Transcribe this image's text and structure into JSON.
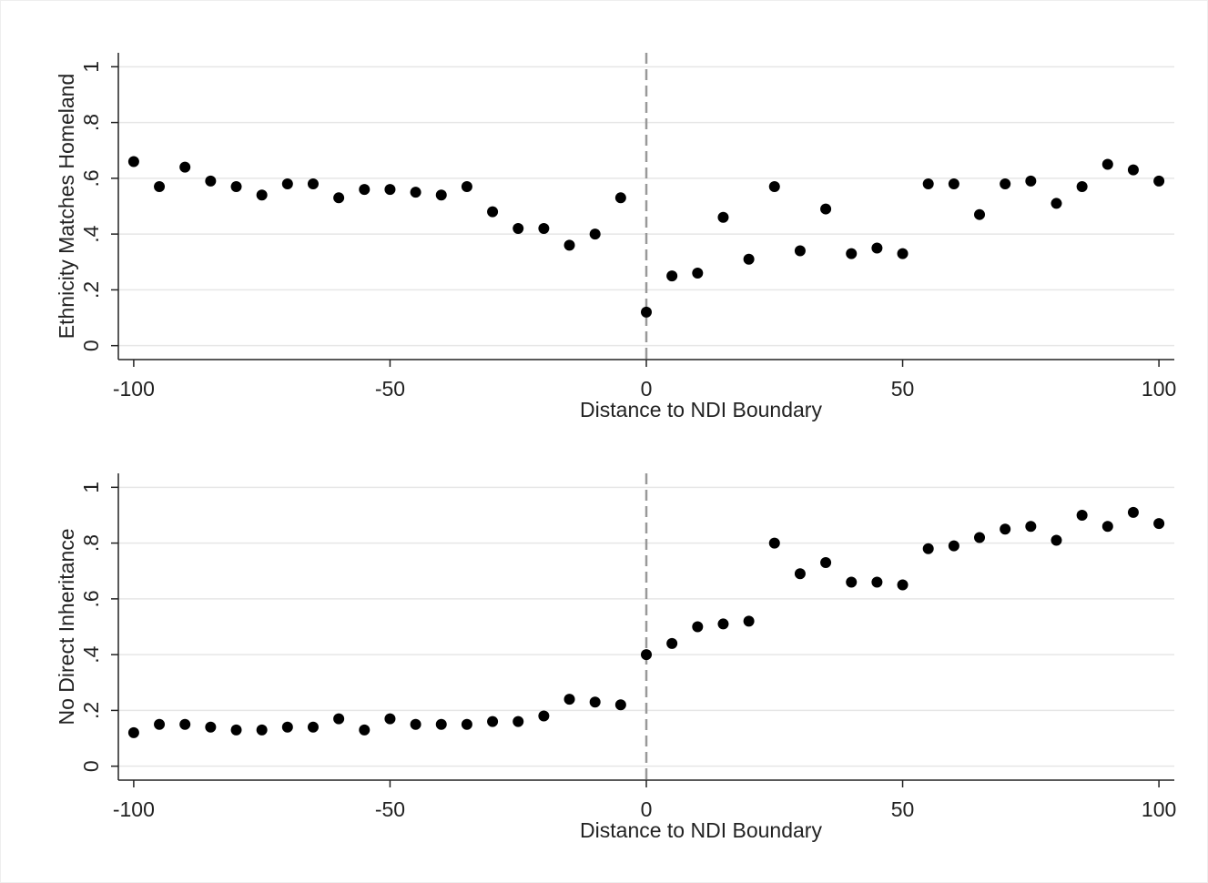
{
  "chart_data": [
    {
      "type": "scatter",
      "y_label": "Ethnicity Matches Homeland",
      "x_label": "Distance to NDI Boundary",
      "x": [
        -100,
        -95,
        -90,
        -85,
        -80,
        -75,
        -70,
        -65,
        -60,
        -55,
        -50,
        -45,
        -40,
        -35,
        -30,
        -25,
        -20,
        -15,
        -10,
        -5,
        0,
        5,
        10,
        15,
        20,
        25,
        30,
        35,
        40,
        45,
        50,
        55,
        60,
        65,
        70,
        75,
        80,
        85,
        90,
        95,
        100
      ],
      "values": [
        0.66,
        0.57,
        0.64,
        0.59,
        0.57,
        0.54,
        0.58,
        0.58,
        0.53,
        0.56,
        0.56,
        0.55,
        0.54,
        0.57,
        0.48,
        0.42,
        0.42,
        0.36,
        0.4,
        0.53,
        0.12,
        0.25,
        0.26,
        0.46,
        0.31,
        0.57,
        0.34,
        0.49,
        0.33,
        0.35,
        0.33,
        0.58,
        0.58,
        0.47,
        0.58,
        0.59,
        0.51,
        0.57,
        0.65,
        0.63,
        0.59
      ],
      "color": "#000000",
      "xlim": [
        -103,
        103
      ],
      "ylim": [
        -0.05,
        1.05
      ],
      "xticks": [
        -100,
        -50,
        0,
        50,
        100
      ],
      "yticks": [
        0,
        {
          "value": 0.2,
          "label": ".2"
        },
        {
          "value": 0.4,
          "label": ".4"
        },
        {
          "value": 0.6,
          "label": ".6"
        },
        {
          "value": 0.8,
          "label": ".8"
        },
        1
      ],
      "grid": true,
      "vline": 0
    },
    {
      "type": "scatter",
      "y_label": "No Direct Inheritance",
      "x_label": "Distance to NDI Boundary",
      "x": [
        -100,
        -95,
        -90,
        -85,
        -80,
        -75,
        -70,
        -65,
        -60,
        -55,
        -50,
        -45,
        -40,
        -35,
        -30,
        -25,
        -20,
        -15,
        -10,
        -5,
        0,
        5,
        10,
        15,
        20,
        25,
        30,
        35,
        40,
        45,
        50,
        55,
        60,
        65,
        70,
        75,
        80,
        85,
        90,
        95,
        100
      ],
      "values": [
        0.12,
        0.15,
        0.15,
        0.14,
        0.13,
        0.13,
        0.14,
        0.14,
        0.17,
        0.13,
        0.17,
        0.15,
        0.15,
        0.15,
        0.16,
        0.16,
        0.18,
        0.24,
        0.23,
        0.22,
        0.4,
        0.44,
        0.5,
        0.51,
        0.52,
        0.8,
        0.69,
        0.73,
        0.66,
        0.66,
        0.65,
        0.78,
        0.79,
        0.82,
        0.85,
        0.86,
        0.81,
        0.9,
        0.86,
        0.91,
        0.87
      ],
      "color": "#000000",
      "xlim": [
        -103,
        103
      ],
      "ylim": [
        -0.05,
        1.05
      ],
      "xticks": [
        -100,
        -50,
        0,
        50,
        100
      ],
      "yticks": [
        0,
        {
          "value": 0.2,
          "label": ".2"
        },
        {
          "value": 0.4,
          "label": ".4"
        },
        {
          "value": 0.6,
          "label": ".6"
        },
        {
          "value": 0.8,
          "label": ".8"
        },
        1
      ],
      "grid": true,
      "vline": 0
    }
  ]
}
